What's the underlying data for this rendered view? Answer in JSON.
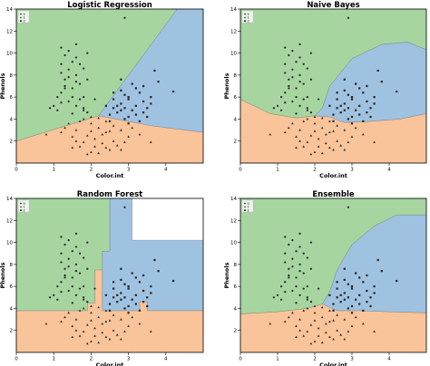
{
  "colors": {
    "class_0": "#a6d5a0",
    "class_1": "#f9c49a",
    "class_2": "#9fc2e0",
    "point_edge": "#333333",
    "axis": "#000000"
  },
  "chart_data": [
    {
      "type": "scatter",
      "title": "Logistic Regression",
      "xlabel": "Color.int",
      "ylabel": "Phenols",
      "xlim": [
        0,
        5
      ],
      "ylim": [
        0,
        14
      ],
      "x_ticks": [
        "0",
        "1",
        "2",
        "3",
        "4"
      ],
      "y_ticks": [
        "2",
        "4",
        "6",
        "8",
        "10",
        "12",
        "14"
      ],
      "legend_entries": [
        "0",
        "1",
        "2"
      ],
      "legend_position": "top-left",
      "regions": [
        {
          "class": "class_1",
          "points": [
            [
              0,
              0
            ],
            [
              5,
              0
            ],
            [
              5,
              2.8
            ],
            [
              3.6,
              3.4
            ],
            [
              2.2,
              4.3
            ],
            [
              0,
              2.0
            ]
          ]
        },
        {
          "class": "class_2",
          "points": [
            [
              2.2,
              4.3
            ],
            [
              3.6,
              3.4
            ],
            [
              5,
              2.8
            ],
            [
              5,
              14
            ],
            [
              4.3,
              14
            ]
          ]
        },
        {
          "class": "class_0",
          "points": [
            [
              0,
              2.0
            ],
            [
              2.2,
              4.3
            ],
            [
              4.3,
              14
            ],
            [
              0,
              14
            ]
          ]
        }
      ]
    },
    {
      "type": "scatter",
      "title": "Naive Bayes",
      "xlabel": "Color.int",
      "ylabel": "Phenols",
      "xlim": [
        0,
        5
      ],
      "ylim": [
        0,
        14
      ],
      "x_ticks": [
        "0",
        "1",
        "2",
        "3",
        "4"
      ],
      "y_ticks": [
        "2",
        "4",
        "6",
        "8",
        "10",
        "12",
        "14"
      ],
      "legend_entries": [
        "0",
        "1",
        "2"
      ],
      "legend_position": "top-left",
      "regions": [
        {
          "class": "class_1",
          "points": [
            [
              0,
              0
            ],
            [
              5,
              0
            ],
            [
              5,
              4.5
            ],
            [
              4.3,
              4.0
            ],
            [
              3.5,
              3.8
            ],
            [
              2.8,
              3.7
            ],
            [
              2.4,
              4.2
            ],
            [
              2.0,
              4.3
            ],
            [
              1.5,
              4.1
            ],
            [
              0.8,
              4.5
            ],
            [
              0,
              5.8
            ]
          ]
        },
        {
          "class": "class_2",
          "points": [
            [
              2.0,
              4.3
            ],
            [
              2.4,
              4.2
            ],
            [
              2.8,
              3.7
            ],
            [
              3.5,
              3.8
            ],
            [
              4.3,
              4.0
            ],
            [
              5,
              4.5
            ],
            [
              5,
              10.3
            ],
            [
              4.5,
              11.0
            ],
            [
              3.8,
              10.8
            ],
            [
              3.0,
              9.5
            ],
            [
              2.4,
              7.0
            ],
            [
              2.2,
              5.0
            ]
          ]
        },
        {
          "class": "class_0",
          "points": [
            [
              0,
              5.8
            ],
            [
              0.8,
              4.5
            ],
            [
              1.5,
              4.1
            ],
            [
              2.0,
              4.3
            ],
            [
              2.2,
              5.0
            ],
            [
              2.4,
              7.0
            ],
            [
              3.0,
              9.5
            ],
            [
              3.8,
              10.8
            ],
            [
              4.5,
              11.0
            ],
            [
              5,
              10.3
            ],
            [
              5,
              14
            ],
            [
              0,
              14
            ]
          ]
        }
      ]
    },
    {
      "type": "scatter",
      "title": "Random Forest",
      "xlabel": "Color.int",
      "ylabel": "Phenols",
      "xlim": [
        0,
        5
      ],
      "ylim": [
        0,
        14
      ],
      "x_ticks": [
        "0",
        "1",
        "2",
        "3",
        "4"
      ],
      "y_ticks": [
        "2",
        "4",
        "6",
        "8",
        "10",
        "12",
        "14"
      ],
      "legend_entries": [
        "0",
        "1",
        "2"
      ],
      "legend_position": "top-left",
      "regions": [
        {
          "class": "class_1",
          "points": [
            [
              0,
              0
            ],
            [
              5,
              0
            ],
            [
              5,
              3.8
            ],
            [
              3.5,
              3.8
            ],
            [
              3.5,
              4.6
            ],
            [
              3.3,
              4.6
            ],
            [
              3.3,
              3.8
            ],
            [
              2.3,
              3.8
            ],
            [
              2.3,
              7.5
            ],
            [
              2.1,
              7.5
            ],
            [
              2.1,
              4.5
            ],
            [
              1.9,
              4.5
            ],
            [
              1.9,
              3.8
            ],
            [
              0,
              3.8
            ]
          ]
        },
        {
          "class": "class_2",
          "points": [
            [
              2.3,
              3.8
            ],
            [
              3.3,
              3.8
            ],
            [
              3.3,
              4.6
            ],
            [
              3.5,
              4.6
            ],
            [
              3.5,
              3.8
            ],
            [
              5,
              3.8
            ],
            [
              5,
              10.2
            ],
            [
              3.1,
              10.2
            ],
            [
              3.1,
              14
            ],
            [
              2.5,
              14
            ],
            [
              2.5,
              9.2
            ],
            [
              2.3,
              9.2
            ]
          ]
        },
        {
          "class": "class_0",
          "points": [
            [
              0,
              3.8
            ],
            [
              1.9,
              3.8
            ],
            [
              1.9,
              4.5
            ],
            [
              2.1,
              4.5
            ],
            [
              2.1,
              7.5
            ],
            [
              2.3,
              7.5
            ],
            [
              2.3,
              9.2
            ],
            [
              2.5,
              9.2
            ],
            [
              2.5,
              14
            ],
            [
              0,
              14
            ]
          ]
        }
      ]
    },
    {
      "type": "scatter",
      "title": "Ensemble",
      "xlabel": "Color.int",
      "ylabel": "Phenols",
      "xlim": [
        0,
        5
      ],
      "ylim": [
        0,
        14
      ],
      "x_ticks": [
        "0",
        "1",
        "2",
        "3",
        "4"
      ],
      "y_ticks": [
        "2",
        "4",
        "6",
        "8",
        "10",
        "12",
        "14"
      ],
      "legend_entries": [
        "0",
        "1",
        "2"
      ],
      "legend_position": "top-left",
      "regions": [
        {
          "class": "class_1",
          "points": [
            [
              0,
              0
            ],
            [
              5,
              0
            ],
            [
              5,
              3.6
            ],
            [
              4.0,
              3.7
            ],
            [
              3.2,
              3.8
            ],
            [
              2.6,
              3.8
            ],
            [
              2.2,
              4.4
            ],
            [
              1.8,
              4.0
            ],
            [
              1.0,
              3.7
            ],
            [
              0,
              3.5
            ]
          ]
        },
        {
          "class": "class_2",
          "points": [
            [
              2.2,
              4.4
            ],
            [
              2.6,
              3.8
            ],
            [
              3.2,
              3.8
            ],
            [
              4.0,
              3.7
            ],
            [
              5,
              3.6
            ],
            [
              5,
              12.5
            ],
            [
              4.2,
              12.5
            ],
            [
              3.6,
              11.5
            ],
            [
              3.0,
              9.8
            ],
            [
              2.6,
              7.5
            ],
            [
              2.4,
              5.5
            ]
          ]
        },
        {
          "class": "class_0",
          "points": [
            [
              0,
              3.5
            ],
            [
              1.0,
              3.7
            ],
            [
              1.8,
              4.0
            ],
            [
              2.2,
              4.4
            ],
            [
              2.4,
              5.5
            ],
            [
              2.6,
              7.5
            ],
            [
              3.0,
              9.8
            ],
            [
              3.6,
              11.5
            ],
            [
              4.2,
              12.5
            ],
            [
              5,
              12.5
            ],
            [
              5,
              14
            ],
            [
              0,
              14
            ]
          ]
        }
      ]
    }
  ],
  "scatter_points": {
    "class_0": [
      [
        1.2,
        10.5
      ],
      [
        1.3,
        9.8
      ],
      [
        1.5,
        9.2
      ],
      [
        1.4,
        8.5
      ],
      [
        1.6,
        8.0
      ],
      [
        1.3,
        7.6
      ],
      [
        1.7,
        7.2
      ],
      [
        1.5,
        6.8
      ],
      [
        1.2,
        6.4
      ],
      [
        1.8,
        6.0
      ],
      [
        1.4,
        5.6
      ],
      [
        1.6,
        5.2
      ],
      [
        1.1,
        4.8
      ],
      [
        1.9,
        4.6
      ],
      [
        1.3,
        7.0
      ],
      [
        1.6,
        9.6
      ],
      [
        1.8,
        8.6
      ],
      [
        1.2,
        8.2
      ],
      [
        1.5,
        6.0
      ],
      [
        1.7,
        5.8
      ],
      [
        1.0,
        5.2
      ],
      [
        1.9,
        7.6
      ],
      [
        1.4,
        10.2
      ],
      [
        1.6,
        10.8
      ],
      [
        1.3,
        6.8
      ],
      [
        1.8,
        5.0
      ],
      [
        1.2,
        9.0
      ],
      [
        1.5,
        4.5
      ],
      [
        1.7,
        9.0
      ],
      [
        1.1,
        6.0
      ],
      [
        2.1,
        5.8
      ],
      [
        1.9,
        10.0
      ],
      [
        1.4,
        7.8
      ],
      [
        1.6,
        7.4
      ],
      [
        1.2,
        5.5
      ],
      [
        2.9,
        13.2
      ],
      [
        0.9,
        5.0
      ],
      [
        1.8,
        4.8
      ]
    ],
    "class_1": [
      [
        1.8,
        4.0
      ],
      [
        2.0,
        3.6
      ],
      [
        2.2,
        3.2
      ],
      [
        1.6,
        3.0
      ],
      [
        2.4,
        2.8
      ],
      [
        1.9,
        2.5
      ],
      [
        2.1,
        2.2
      ],
      [
        2.3,
        1.8
      ],
      [
        1.7,
        1.5
      ],
      [
        2.5,
        1.2
      ],
      [
        2.0,
        1.0
      ],
      [
        2.6,
        2.0
      ],
      [
        1.5,
        2.4
      ],
      [
        2.8,
        3.0
      ],
      [
        2.2,
        4.1
      ],
      [
        1.4,
        3.6
      ],
      [
        2.7,
        1.6
      ],
      [
        2.0,
        2.9
      ],
      [
        1.8,
        1.9
      ],
      [
        2.4,
        3.8
      ],
      [
        3.0,
        2.4
      ],
      [
        1.3,
        3.2
      ],
      [
        2.9,
        1.9
      ],
      [
        2.1,
        1.5
      ],
      [
        1.7,
        3.8
      ],
      [
        2.3,
        2.6
      ],
      [
        2.6,
        3.4
      ],
      [
        1.9,
        0.8
      ],
      [
        2.5,
        2.9
      ],
      [
        3.1,
        3.2
      ],
      [
        1.6,
        2.0
      ],
      [
        2.2,
        0.9
      ],
      [
        2.8,
        1.2
      ],
      [
        1.2,
        2.8
      ],
      [
        2.0,
        4.2
      ],
      [
        3.3,
        2.6
      ],
      [
        1.5,
        1.4
      ],
      [
        2.4,
        1.4
      ],
      [
        0.8,
        2.6
      ],
      [
        3.6,
        1.9
      ]
    ],
    "class_2": [
      [
        2.6,
        5.0
      ],
      [
        2.8,
        5.4
      ],
      [
        3.0,
        5.8
      ],
      [
        2.7,
        4.6
      ],
      [
        3.2,
        5.2
      ],
      [
        2.9,
        6.2
      ],
      [
        3.4,
        5.6
      ],
      [
        3.1,
        4.8
      ],
      [
        2.5,
        4.4
      ],
      [
        3.3,
        6.4
      ],
      [
        2.8,
        6.6
      ],
      [
        3.0,
        4.2
      ],
      [
        3.5,
        5.0
      ],
      [
        2.6,
        5.8
      ],
      [
        3.2,
        6.8
      ],
      [
        2.9,
        4.0
      ],
      [
        3.4,
        4.6
      ],
      [
        3.6,
        6.0
      ],
      [
        2.7,
        5.2
      ],
      [
        3.1,
        7.2
      ],
      [
        3.8,
        7.4
      ],
      [
        3.0,
        6.0
      ],
      [
        2.5,
        3.8
      ],
      [
        3.3,
        3.8
      ],
      [
        2.8,
        7.6
      ],
      [
        3.5,
        4.2
      ],
      [
        4.2,
        6.5
      ],
      [
        3.7,
        8.4
      ],
      [
        2.6,
        6.4
      ],
      [
        3.2,
        4.4
      ],
      [
        2.9,
        5.0
      ],
      [
        3.4,
        7.0
      ],
      [
        3.0,
        3.6
      ],
      [
        2.4,
        5.2
      ],
      [
        3.6,
        5.4
      ],
      [
        2.8,
        4.8
      ]
    ]
  }
}
